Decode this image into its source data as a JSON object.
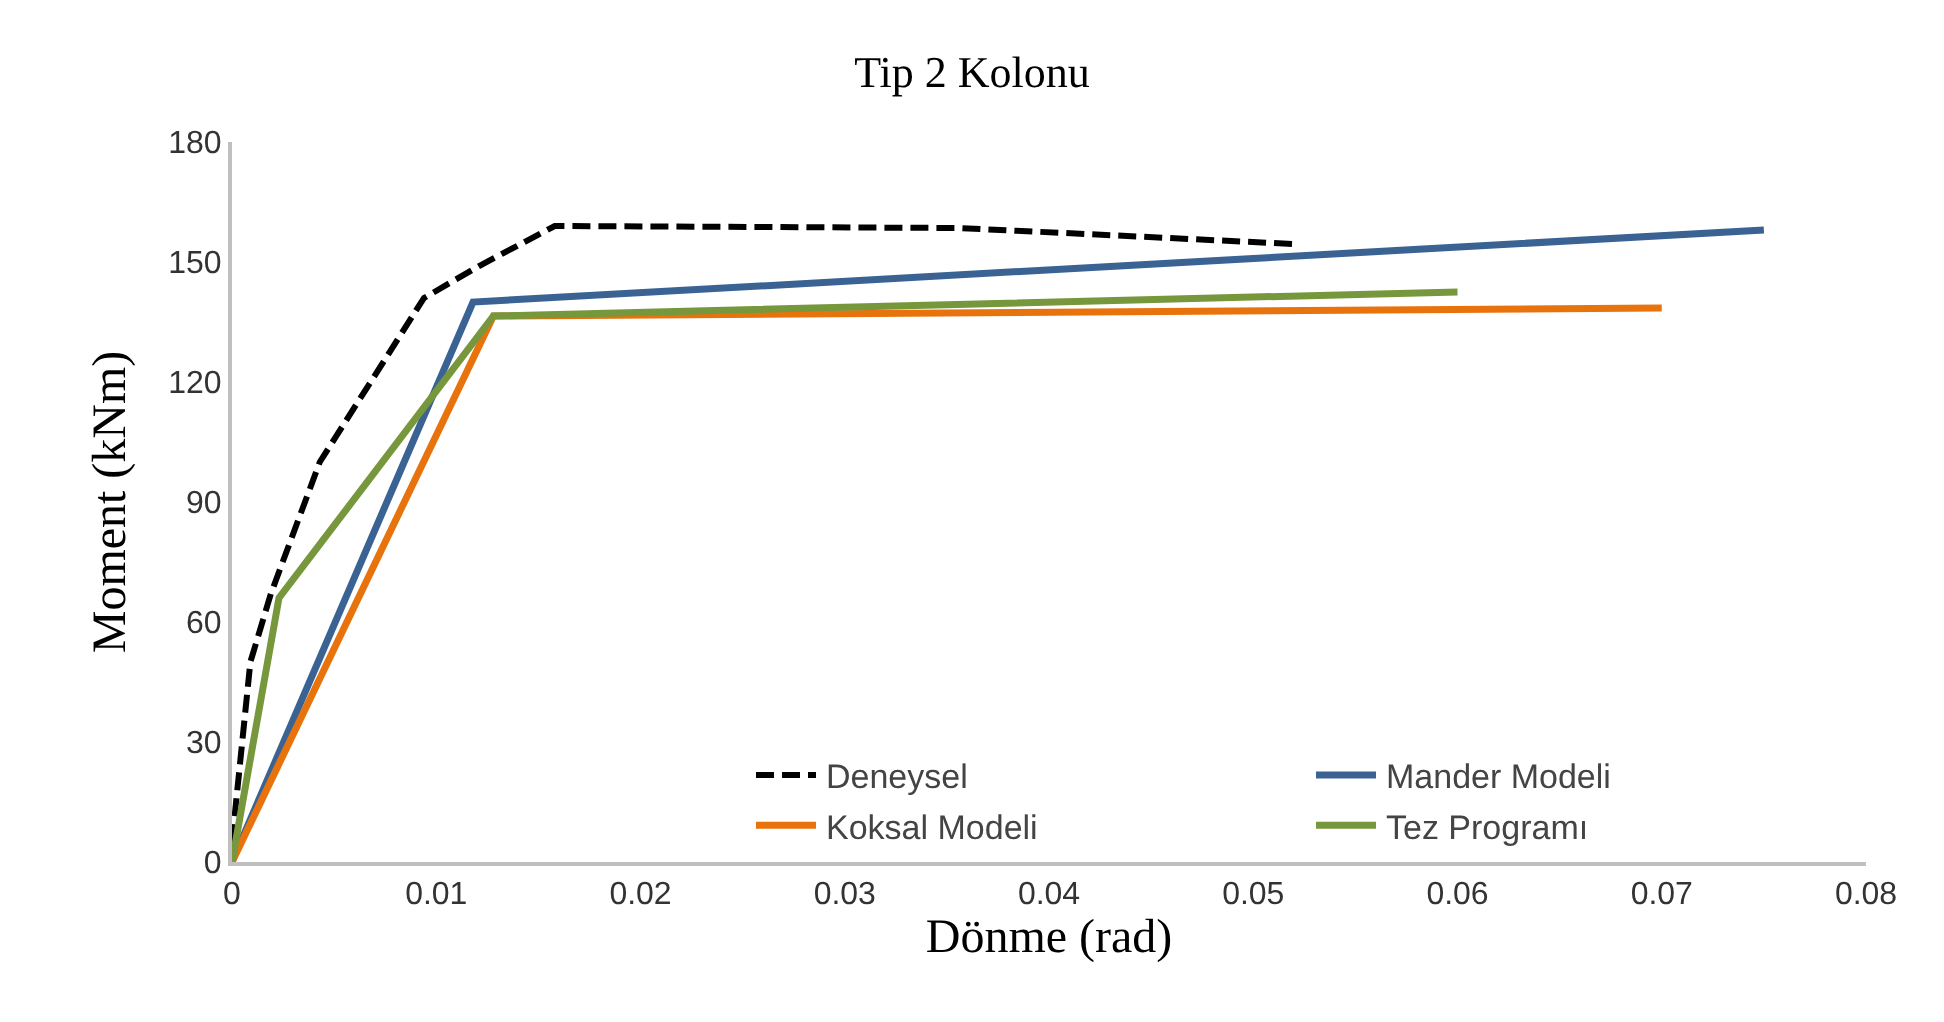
{
  "chart_data": {
    "type": "line",
    "title": "Tip 2 Kolonu",
    "xlabel": "Dönme (rad)",
    "ylabel": "Moment (kNm)",
    "xlim": [
      0,
      0.08
    ],
    "xticks": [
      0,
      0.01,
      0.02,
      0.03,
      0.04,
      0.05,
      0.06,
      0.07,
      0.08
    ],
    "ylim": [
      0,
      180
    ],
    "yticks": [
      0,
      30,
      60,
      90,
      120,
      150,
      180
    ],
    "grid": false,
    "legend": "bottom right",
    "marker": "none",
    "series": [
      {
        "name": "Deneysel",
        "color": "#000000",
        "line_style": "dashed",
        "x": [
          0,
          0.0009,
          0.0019,
          0.0043,
          0.0094,
          0.0121,
          0.0158,
          0.0356,
          0.052
        ],
        "values": [
          5,
          50,
          67,
          100,
          141,
          149,
          159,
          158.5,
          154.5
        ]
      },
      {
        "name": "Mander Modeli",
        "color": "#3a6393",
        "line_style": "solid",
        "x": [
          0,
          0.0118,
          0.075
        ],
        "values": [
          0,
          140,
          158
        ]
      },
      {
        "name": "Koksal Modeli",
        "color": "#e8720c",
        "line_style": "solid",
        "x": [
          0,
          0.0128,
          0.07
        ],
        "values": [
          0,
          136.5,
          138.5
        ]
      },
      {
        "name": "Tez Programı",
        "color": "#77973d",
        "line_style": "solid",
        "x": [
          0,
          0.0023,
          0.0128,
          0.06
        ],
        "values": [
          0,
          66,
          136.5,
          142.5
        ]
      }
    ]
  }
}
